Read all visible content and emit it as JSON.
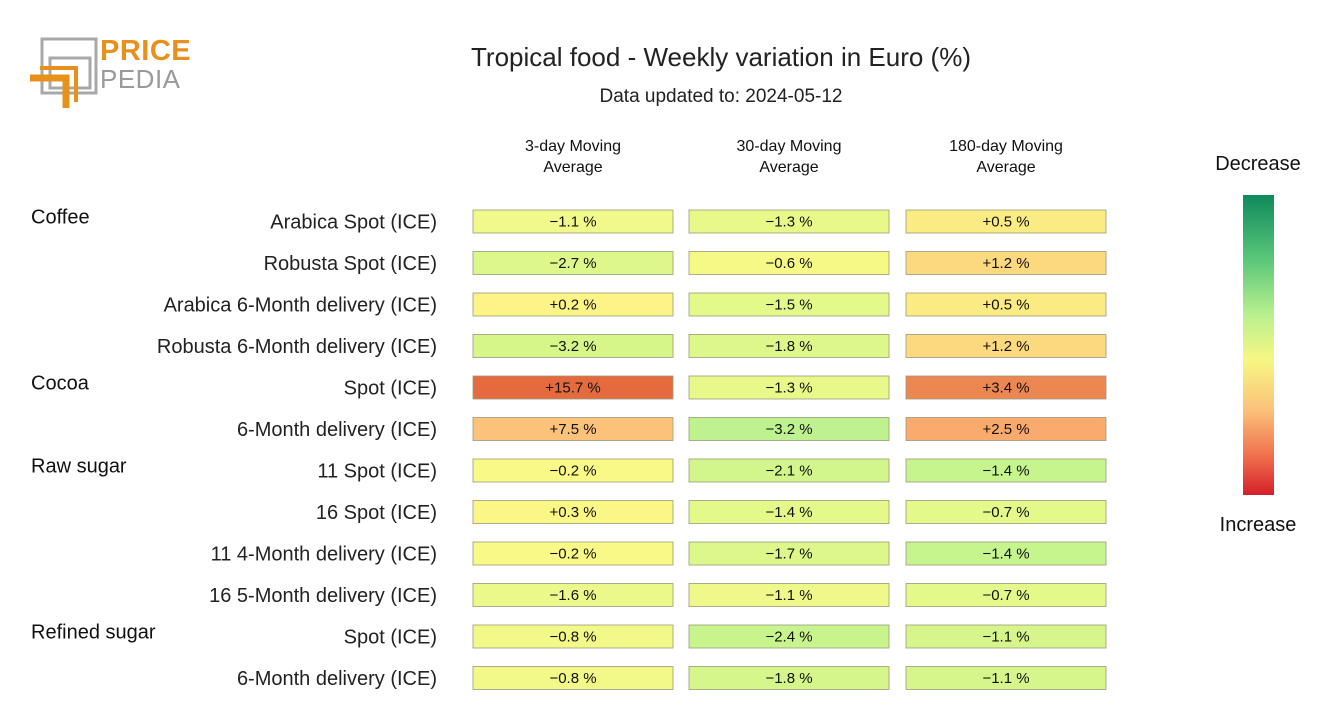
{
  "logo": {
    "text_top": "PRICE",
    "text_bottom": "PEDIA",
    "colors": {
      "orange": "#e8901c",
      "gray": "#9a9a9a"
    }
  },
  "chart_data": {
    "type": "heatmap",
    "title": "Tropical food - Weekly variation in Euro (%)",
    "subtitle": "Data updated to: 2024-05-12",
    "columns": [
      [
        "3-day Moving",
        "Average"
      ],
      [
        "30-day Moving",
        "Average"
      ],
      [
        "180-day Moving",
        "Average"
      ]
    ],
    "groups": [
      {
        "name": "Coffee",
        "rows": [
          {
            "label": "Arabica Spot (ICE)",
            "values": [
              -1.1,
              -1.3,
              0.5
            ],
            "texts": [
              "−1.1 %",
              "−1.3 %",
              "+0.5 %"
            ]
          },
          {
            "label": "Robusta Spot (ICE)",
            "values": [
              -2.7,
              -0.6,
              1.2
            ],
            "texts": [
              "−2.7 %",
              "−0.6 %",
              "+1.2 %"
            ]
          },
          {
            "label": "Arabica 6-Month delivery (ICE)",
            "values": [
              0.2,
              -1.5,
              0.5
            ],
            "texts": [
              "+0.2 %",
              "−1.5 %",
              "+0.5 %"
            ]
          },
          {
            "label": "Robusta 6-Month delivery (ICE)",
            "values": [
              -3.2,
              -1.8,
              1.2
            ],
            "texts": [
              "−3.2 %",
              "−1.8 %",
              "+1.2 %"
            ]
          }
        ]
      },
      {
        "name": "Cocoa",
        "rows": [
          {
            "label": "Spot (ICE)",
            "values": [
              15.7,
              -1.3,
              3.4
            ],
            "texts": [
              "+15.7 %",
              "−1.3 %",
              "+3.4 %"
            ]
          },
          {
            "label": "6-Month delivery (ICE)",
            "values": [
              7.5,
              -3.2,
              2.5
            ],
            "texts": [
              "+7.5 %",
              "−3.2 %",
              "+2.5 %"
            ]
          }
        ]
      },
      {
        "name": "Raw sugar",
        "rows": [
          {
            "label": "11 Spot (ICE)",
            "values": [
              -0.2,
              -2.1,
              -1.4
            ],
            "texts": [
              "−0.2 %",
              "−2.1 %",
              "−1.4 %"
            ]
          },
          {
            "label": "16 Spot (ICE)",
            "values": [
              0.3,
              -1.4,
              -0.7
            ],
            "texts": [
              "+0.3 %",
              "−1.4 %",
              "−0.7 %"
            ]
          },
          {
            "label": "11 4-Month delivery (ICE)",
            "values": [
              -0.2,
              -1.7,
              -1.4
            ],
            "texts": [
              "−0.2 %",
              "−1.7 %",
              "−1.4 %"
            ]
          },
          {
            "label": "16 5-Month delivery (ICE)",
            "values": [
              -1.6,
              -1.1,
              -0.7
            ],
            "texts": [
              "−1.6 %",
              "−1.1 %",
              "−0.7 %"
            ]
          }
        ]
      },
      {
        "name": "Refined sugar",
        "rows": [
          {
            "label": "Spot (ICE)",
            "values": [
              -0.8,
              -2.4,
              -1.1
            ],
            "texts": [
              "−0.8 %",
              "−2.4 %",
              "−1.1 %"
            ]
          },
          {
            "label": "6-Month delivery (ICE)",
            "values": [
              -0.8,
              -1.8,
              -1.1
            ],
            "texts": [
              "−0.8 %",
              "−1.8 %",
              "−1.1 %"
            ]
          }
        ]
      }
    ],
    "cell_colors": [
      [
        "#f0f98a",
        "#e8f98a",
        "#fbeb83"
      ],
      [
        "#dcf78a",
        "#f6f986",
        "#fcd97e"
      ],
      [
        "#fcf486",
        "#e3f98a",
        "#fbeb83"
      ],
      [
        "#d6f68a",
        "#def78a",
        "#fcd97e"
      ],
      [
        "#e56a3e",
        "#e8f98a",
        "#ec8752"
      ],
      [
        "#fdc27a",
        "#bdf28f",
        "#fbaa6e"
      ],
      [
        "#f8f986",
        "#d2f68b",
        "#c6f48d"
      ],
      [
        "#faf786",
        "#e5f98a",
        "#e5f98a"
      ],
      [
        "#f8f986",
        "#dcf78a",
        "#c6f48d"
      ],
      [
        "#eaf989",
        "#eef989",
        "#e5f98a"
      ],
      [
        "#f3f988",
        "#c8f48d",
        "#d6f68b"
      ],
      [
        "#f3f988",
        "#d4f68b",
        "#d6f68b"
      ]
    ],
    "legend": {
      "top_label": "Decrease",
      "bottom_label": "Increase",
      "position": "right"
    }
  }
}
